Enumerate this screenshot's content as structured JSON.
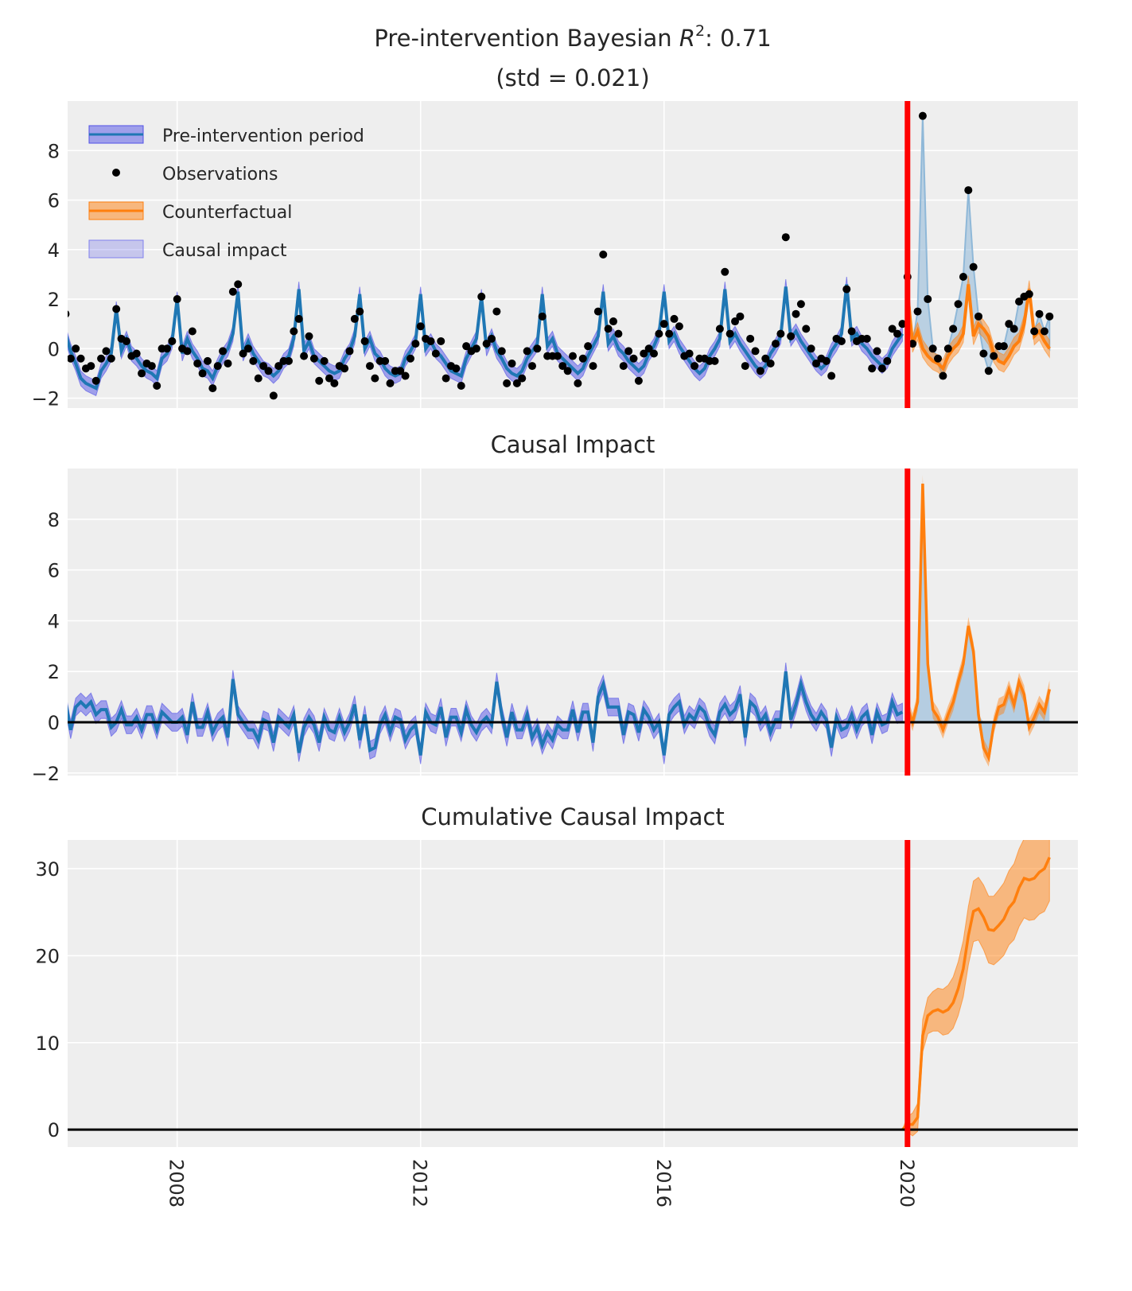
{
  "chart_data": [
    {
      "type": "line",
      "title": {
        "prefix": "Pre-intervention Bayesian ",
        "symbol": "R",
        "superscript": "2",
        "suffix": ": 0.71",
        "line2": "(std = 0.021)"
      },
      "legend": {
        "placement": "top-left",
        "entries": [
          "Pre-intervention period",
          "Observations",
          "Counterfactual",
          "Causal impact"
        ]
      },
      "yticks": [
        -2,
        0,
        2,
        4,
        6,
        8
      ],
      "ytick_labels": [
        "−2",
        "0",
        "2",
        "4",
        "6",
        "8"
      ],
      "ylim": [
        -2.4,
        10
      ]
    },
    {
      "type": "line",
      "title": "Causal Impact",
      "yticks": [
        -2,
        0,
        2,
        4,
        6,
        8
      ],
      "ytick_labels": [
        "−2",
        "0",
        "2",
        "4",
        "6",
        "8"
      ],
      "ylim": [
        -2.1,
        10
      ]
    },
    {
      "type": "line",
      "title": "Cumulative Causal Impact",
      "yticks": [
        0,
        10,
        20,
        30
      ],
      "ytick_labels": [
        "0",
        "10",
        "20",
        "30"
      ],
      "ylim": [
        -2,
        33.3
      ]
    }
  ],
  "series_common": {
    "start": "2006-01",
    "frequency": "monthly",
    "intervention": "2020-01",
    "xticks": [
      2008,
      2012,
      2016,
      2020
    ],
    "xtick_labels": [
      "2008",
      "2012",
      "2016",
      "2020"
    ],
    "xlim": [
      2006.2,
      2022.8
    ],
    "grid": true,
    "observations": [
      1.4,
      0.0,
      1.4,
      -0.4,
      0.0,
      -0.4,
      -0.8,
      -0.7,
      -1.3,
      -0.4,
      -0.1,
      -0.4,
      1.6,
      0.4,
      0.3,
      -0.3,
      -0.2,
      -1.0,
      -0.6,
      -0.7,
      -1.5,
      0.0,
      0.0,
      0.3,
      2.0,
      0.0,
      -0.1,
      0.7,
      -0.6,
      -1.0,
      -0.5,
      -1.6,
      -0.7,
      -0.1,
      -0.6,
      2.3,
      2.6,
      -0.2,
      0.0,
      -0.5,
      -1.2,
      -0.7,
      -0.9,
      -1.9,
      -0.7,
      -0.5,
      -0.5,
      0.7,
      1.2,
      -0.3,
      0.5,
      -0.4,
      -1.3,
      -0.5,
      -1.2,
      -1.4,
      -0.7,
      -0.8,
      -0.1,
      1.2,
      1.5,
      0.3,
      -0.7,
      -1.2,
      -0.5,
      -0.5,
      -1.4,
      -0.9,
      -0.9,
      -1.1,
      -0.4,
      0.2,
      0.9,
      0.4,
      0.3,
      -0.2,
      0.3,
      -1.2,
      -0.7,
      -0.8,
      -1.5,
      0.1,
      -0.1,
      0.0,
      2.1,
      0.2,
      0.4,
      1.5,
      -0.1,
      -1.4,
      -0.6,
      -1.4,
      -1.2,
      -0.1,
      -0.7,
      0.0,
      1.3,
      -0.3,
      -0.3,
      -0.3,
      -0.7,
      -0.9,
      -0.3,
      -1.4,
      -0.4,
      0.1,
      -0.7,
      1.5,
      3.8,
      0.8,
      1.1,
      0.6,
      -0.7,
      -0.1,
      -0.4,
      -1.3,
      -0.2,
      0.0,
      -0.2,
      0.6,
      1.0,
      0.6,
      1.2,
      0.9,
      -0.3,
      -0.2,
      -0.7,
      -0.4,
      -0.4,
      -0.5,
      -0.5,
      0.8,
      3.1,
      0.6,
      1.1,
      1.3,
      -0.7,
      0.4,
      -0.1,
      -0.9,
      -0.4,
      -0.6,
      0.2,
      0.6,
      4.5,
      0.5,
      1.4,
      1.8,
      0.8,
      0.0,
      -0.6,
      -0.4,
      -0.5,
      -1.1,
      0.4,
      0.3,
      2.4,
      0.7,
      0.3,
      0.4,
      0.4,
      -0.8,
      -0.1,
      -0.8,
      -0.5,
      0.8,
      0.6,
      1.0,
      2.9,
      0.2,
      1.5,
      9.4,
      2.0,
      0.0,
      -0.4,
      -1.1,
      0.0,
      0.8,
      1.8,
      2.9,
      6.4,
      3.3,
      1.3,
      -0.2,
      -0.9,
      -0.3,
      0.1,
      0.1,
      1.0,
      0.8,
      1.9,
      2.1,
      2.2,
      0.7,
      1.4,
      0.7,
      1.3
    ],
    "fitted_and_counterfactual": [
      1.8,
      -0.2,
      0.6,
      -0.1,
      -0.6,
      -1.2,
      -1.4,
      -1.5,
      -1.6,
      -0.9,
      -0.6,
      -0.2,
      1.6,
      -0.1,
      0.4,
      -0.2,
      -0.4,
      -0.7,
      -0.9,
      -1.0,
      -1.2,
      -0.4,
      -0.2,
      0.3,
      2.0,
      -0.2,
      0.4,
      -0.1,
      -0.4,
      -0.8,
      -0.9,
      -1.2,
      -0.7,
      -0.3,
      0.0,
      0.6,
      2.3,
      -0.2,
      0.3,
      -0.2,
      -0.5,
      -0.8,
      -0.9,
      -1.1,
      -0.9,
      -0.5,
      -0.3,
      0.4,
      2.4,
      -0.1,
      0.3,
      -0.3,
      -0.5,
      -0.7,
      -0.9,
      -1.0,
      -0.9,
      -0.4,
      -0.1,
      0.5,
      2.2,
      0.0,
      0.4,
      -0.2,
      -0.4,
      -0.8,
      -1.0,
      -1.1,
      -1.0,
      -0.4,
      -0.1,
      0.3,
      2.2,
      0.0,
      0.3,
      -0.1,
      -0.3,
      -0.6,
      -0.9,
      -1.0,
      -1.1,
      -0.4,
      0.0,
      0.4,
      2.1,
      0.0,
      0.5,
      -0.1,
      -0.4,
      -0.8,
      -1.0,
      -1.1,
      -0.9,
      -0.4,
      -0.1,
      0.2,
      2.2,
      0.1,
      0.4,
      -0.2,
      -0.4,
      -0.6,
      -0.8,
      -1.0,
      -0.8,
      -0.3,
      0.1,
      0.5,
      2.3,
      0.2,
      0.5,
      0.0,
      -0.2,
      -0.5,
      -0.7,
      -0.9,
      -0.7,
      -0.2,
      0.1,
      0.6,
      2.3,
      0.3,
      0.6,
      0.1,
      -0.2,
      -0.5,
      -0.8,
      -1.0,
      -0.8,
      -0.3,
      0.0,
      0.4,
      2.4,
      0.3,
      0.6,
      0.2,
      -0.1,
      -0.4,
      -0.7,
      -0.9,
      -0.7,
      -0.2,
      0.1,
      0.5,
      2.5,
      0.4,
      0.7,
      0.3,
      0.0,
      -0.3,
      -0.6,
      -0.8,
      -0.6,
      -0.1,
      0.2,
      0.6,
      2.6,
      0.4,
      0.6,
      0.2,
      0.0,
      -0.3,
      -0.5,
      -0.7,
      -0.5,
      0.0,
      0.3,
      0.6,
      2.3,
      0.2,
      0.7,
      0.0,
      -0.3,
      -0.5,
      -0.6,
      -0.8,
      -0.3,
      0.0,
      0.2,
      0.6,
      2.6,
      0.5,
      1.0,
      0.8,
      0.5,
      -0.2,
      -0.5,
      -0.6,
      -0.3,
      0.1,
      0.3,
      1.0,
      2.4,
      0.5,
      0.7,
      0.3,
      0.0
    ]
  },
  "colors": {
    "background": "#eeeeee",
    "grid": "#ffffff",
    "fit_line": "#1f77b4",
    "fit_band": "#5050e6",
    "counterfactual": "#ff7f0e",
    "impact_fill": "#8fb8d8",
    "intervention_line": "#ff0000",
    "observations": "#000000",
    "zero_line": "#000000"
  }
}
